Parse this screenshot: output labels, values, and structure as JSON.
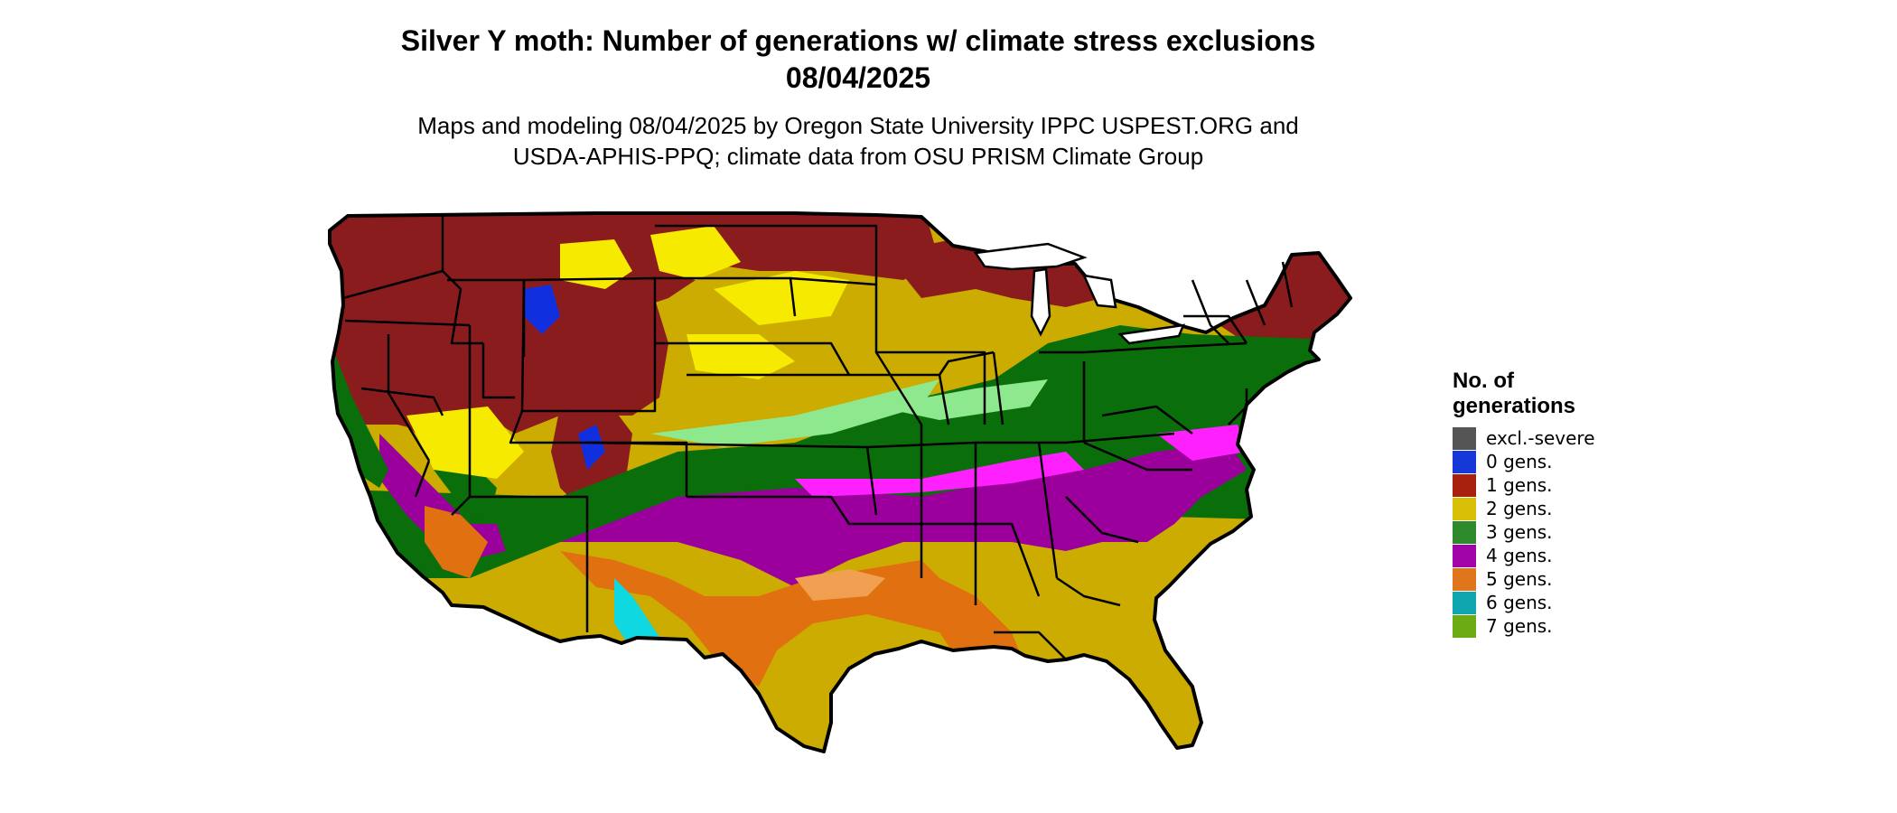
{
  "title_line1": "Silver Y moth: Number of generations w/ climate stress exclusions",
  "title_line2": "08/04/2025",
  "subtitle_line1": "Maps and modeling 08/04/2025 by Oregon State University IPPC USPEST.ORG and",
  "subtitle_line2": "USDA-APHIS-PPQ; climate data from OSU PRISM Climate Group",
  "legend": {
    "title_line1": "No. of",
    "title_line2": "generations",
    "items": [
      {
        "label": "excl.-severe",
        "color": "#555555"
      },
      {
        "label": "0 gens.",
        "color": "#1538d9"
      },
      {
        "label": "1 gens.",
        "color": "#a8200e"
      },
      {
        "label": "2 gens.",
        "color": "#d6bf04"
      },
      {
        "label": "3 gens.",
        "color": "#2e8a2a"
      },
      {
        "label": "4 gens.",
        "color": "#a004a8"
      },
      {
        "label": "5 gens.",
        "color": "#e0761c"
      },
      {
        "label": "6 gens.",
        "color": "#0fa6b0"
      },
      {
        "label": "7 gens.",
        "color": "#6cab14"
      }
    ]
  },
  "map_colors": {
    "one_gen": "#8a1c1e",
    "two_gen": "#ccac00",
    "two_gen_light": "#f5ea00",
    "three_gen": "#0a6e0a",
    "three_gen_light": "#8ee88e",
    "four_gen": "#9c009c",
    "four_gen_light": "#ff20ff",
    "five_gen": "#e07010",
    "five_gen_light": "#f0a050",
    "six_gen": "#10d8e0",
    "zero_gen": "#1030e0",
    "border": "#000000"
  }
}
